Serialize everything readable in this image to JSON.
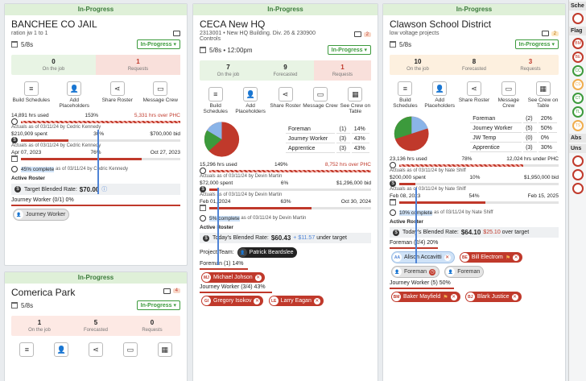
{
  "colors": {
    "accent_red": "#c0392b",
    "green": "#3c9a3c",
    "blue": "#4f84d6"
  },
  "cards": [
    {
      "status": "In-Progress",
      "title": "BANCHEE CO JAIL",
      "subtitle": "ration jw 1 to 1",
      "date": "5/8s",
      "state": "In-Progress",
      "stats": [
        {
          "n": "0",
          "l": "On the job"
        },
        {
          "n": "1",
          "l": "Requests"
        }
      ],
      "actions": [
        "Build Schedules",
        "Add Placeholders",
        "Share Roster",
        "Message Crew"
      ],
      "hours": {
        "used": "14,891 hrs used",
        "pct": "153%",
        "over": "5,331 hrs over PHC",
        "actuals": "Actuals as of 03/11/24 by Cedric Kennedy"
      },
      "money": {
        "spent": "$210,909 spent",
        "pct": "30%",
        "bid": "$700,000 bid",
        "actuals": "Actuals as of 03/11/24 by Cedric Kennedy"
      },
      "dates": {
        "start": "Apr 07, 2023",
        "pct": "76%",
        "end": "Oct 27, 2023"
      },
      "complete": {
        "pct": "45% complete",
        "rest": "as of 03/11/24 by Cedric Kennedy"
      },
      "active_roster": "Active Roster",
      "blended_label": "Target Blended Rate:",
      "blended_value": "$70.00",
      "roster_line": "Journey Worker (0/1) 0%",
      "chip": "Journey Worker"
    },
    {
      "status": "In-Progress",
      "title": "CECA New HQ",
      "subtitle": "2313001 • New HQ Building. Div. 26 & 230900 Controls",
      "date": "5/8s • 12:00pm",
      "state": "In-Progress",
      "badge": "2",
      "stats": [
        {
          "n": "7",
          "l": "On the job"
        },
        {
          "n": "9",
          "l": "Forecasted"
        },
        {
          "n": "1",
          "l": "Requests"
        }
      ],
      "actions": [
        "Build Schedules",
        "Add Placeholders",
        "Share Roster",
        "Message Crew",
        "See Crew on Table"
      ],
      "roles": [
        {
          "name": "Foreman",
          "count": "(1)",
          "pct": "14%"
        },
        {
          "name": "Journey Worker",
          "count": "(3)",
          "pct": "43%"
        },
        {
          "name": "Apprentice",
          "count": "(3)",
          "pct": "43%"
        }
      ],
      "hours": {
        "used": "15,296 hrs used",
        "pct": "149%",
        "over": "8,752 hrs over PHC",
        "actuals": "Actuals as of 03/11/24 by Devin Martin"
      },
      "money": {
        "spent": "$72,000 spent",
        "pct": "6%",
        "bid": "$1,296,000 bid",
        "actuals": "Actuals as of 03/11/24 by Devin Martin"
      },
      "dates": {
        "start": "Feb 01, 2024",
        "pct": "63%",
        "end": "Oct 30, 2024"
      },
      "complete": {
        "pct": "5% complete",
        "rest": "as of 03/11/24 by Devin Martin"
      },
      "active_roster": "Active Roster",
      "blended_label": "Today's Blended Rate:",
      "blended_value": "$60.43",
      "blended_delta": "+ $11.57",
      "blended_note": "under target",
      "team_label": "Project Team:",
      "team_member": "Patrick Beardslee",
      "foreman_line": "Foreman (1) 14%",
      "foreman_chip": {
        "initials": "MJ",
        "name": "Michael Johson"
      },
      "jw_line": "Journey Worker (3/4) 43%",
      "jw_chips": [
        {
          "initials": "GI",
          "name": "Gregory Isokov"
        },
        {
          "initials": "LE",
          "name": "Larry Eagan"
        }
      ]
    },
    {
      "status": "In-Progress",
      "title": "Clawson School District",
      "subtitle": "low voltage projects",
      "date": "5/8s",
      "state": "In-Progress",
      "badge": "2",
      "stats": [
        {
          "n": "10",
          "l": "On the job"
        },
        {
          "n": "8",
          "l": "Forecasted"
        },
        {
          "n": "3",
          "l": "Requests"
        }
      ],
      "actions": [
        "Build Schedules",
        "Add Placeholders",
        "Share Roster",
        "Message Crew",
        "See Crew on Table"
      ],
      "roles": [
        {
          "name": "Foreman",
          "count": "(2)",
          "pct": "20%"
        },
        {
          "name": "Journey Worker",
          "count": "(5)",
          "pct": "50%"
        },
        {
          "name": "JW Temp",
          "count": "(0)",
          "pct": "0%"
        },
        {
          "name": "Apprentice",
          "count": "(3)",
          "pct": "30%"
        }
      ],
      "hours": {
        "used": "23,136 hrs used",
        "pct": "78%",
        "over": "12,024 hrs under PHC",
        "actuals": "Actuals as of 03/11/24 by Nate Shiff"
      },
      "money": {
        "spent": "$200,000 spent",
        "pct": "10%",
        "bid": "$1,950,000 bid",
        "actuals": "Actuals as of 03/11/24 by Nate Shiff"
      },
      "dates": {
        "start": "Feb 08, 2023",
        "pct": "54%",
        "end": "Feb 15, 2025"
      },
      "complete": {
        "pct": "10% complete",
        "rest": "as of 03/11/24 by Nate Shiff"
      },
      "active_roster": "Active Roster",
      "blended_label": "Today's Blended Rate:",
      "blended_value": "$64.10",
      "blended_delta": "$25.10",
      "blended_note": "over target",
      "foreman_line": "Foreman (2/4) 20%",
      "foreman_chips": [
        {
          "initials": "AA",
          "name": "Alison Accavitti"
        },
        {
          "initials": "BE",
          "name": "Bill Electrom"
        }
      ],
      "placeholder_chips": [
        "Foreman",
        "Foreman"
      ],
      "jw_line": "Journey Worker (5) 50%",
      "jw_chips": [
        {
          "initials": "BM",
          "name": "Baker Mayfield"
        },
        {
          "initials": "BJ",
          "name": "Blark Justice"
        }
      ]
    },
    {
      "status": "In-Progress",
      "title": "Comerica Park",
      "date": "5/8s",
      "state": "In-Progress",
      "badge": "4",
      "stats": [
        {
          "n": "1",
          "l": "On the job"
        },
        {
          "n": "5",
          "l": "Forecasted"
        },
        {
          "n": "0",
          "l": "Requests"
        }
      ]
    }
  ],
  "sidebar": {
    "headers": [
      "Sche",
      "Flag",
      "Abs",
      "Uns"
    ],
    "flag_initials": [
      "BM",
      "BE",
      "CC",
      "CS",
      "CT",
      "TL",
      "TS"
    ]
  }
}
